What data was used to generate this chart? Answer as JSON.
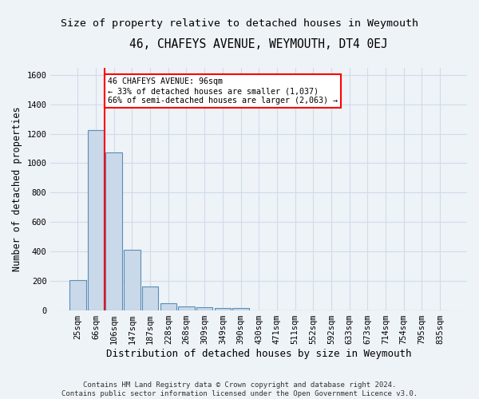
{
  "title": "46, CHAFEYS AVENUE, WEYMOUTH, DT4 0EJ",
  "subtitle": "Size of property relative to detached houses in Weymouth",
  "xlabel": "Distribution of detached houses by size in Weymouth",
  "ylabel": "Number of detached properties",
  "categories": [
    "25sqm",
    "66sqm",
    "106sqm",
    "147sqm",
    "187sqm",
    "228sqm",
    "268sqm",
    "309sqm",
    "349sqm",
    "390sqm",
    "430sqm",
    "471sqm",
    "511sqm",
    "552sqm",
    "592sqm",
    "633sqm",
    "673sqm",
    "714sqm",
    "754sqm",
    "795sqm",
    "835sqm"
  ],
  "values": [
    205,
    1225,
    1075,
    410,
    165,
    48,
    25,
    20,
    15,
    15,
    0,
    0,
    0,
    0,
    0,
    0,
    0,
    0,
    0,
    0,
    0
  ],
  "bar_color": "#c9d9ea",
  "bar_edge_color": "#5b8db5",
  "red_line_x": 1.5,
  "ylim": [
    0,
    1650
  ],
  "yticks": [
    0,
    200,
    400,
    600,
    800,
    1000,
    1200,
    1400,
    1600
  ],
  "annotation_text": "46 CHAFEYS AVENUE: 96sqm\n← 33% of detached houses are smaller (1,037)\n66% of semi-detached houses are larger (2,063) →",
  "footer_line1": "Contains HM Land Registry data © Crown copyright and database right 2024.",
  "footer_line2": "Contains public sector information licensed under the Open Government Licence v3.0.",
  "bg_color": "#eef3f8",
  "plot_bg_color": "#eef3f8",
  "grid_color": "#d0dce8",
  "title_fontsize": 10.5,
  "subtitle_fontsize": 9.5,
  "axis_label_fontsize": 8.5,
  "tick_fontsize": 7.5,
  "footer_fontsize": 6.5
}
